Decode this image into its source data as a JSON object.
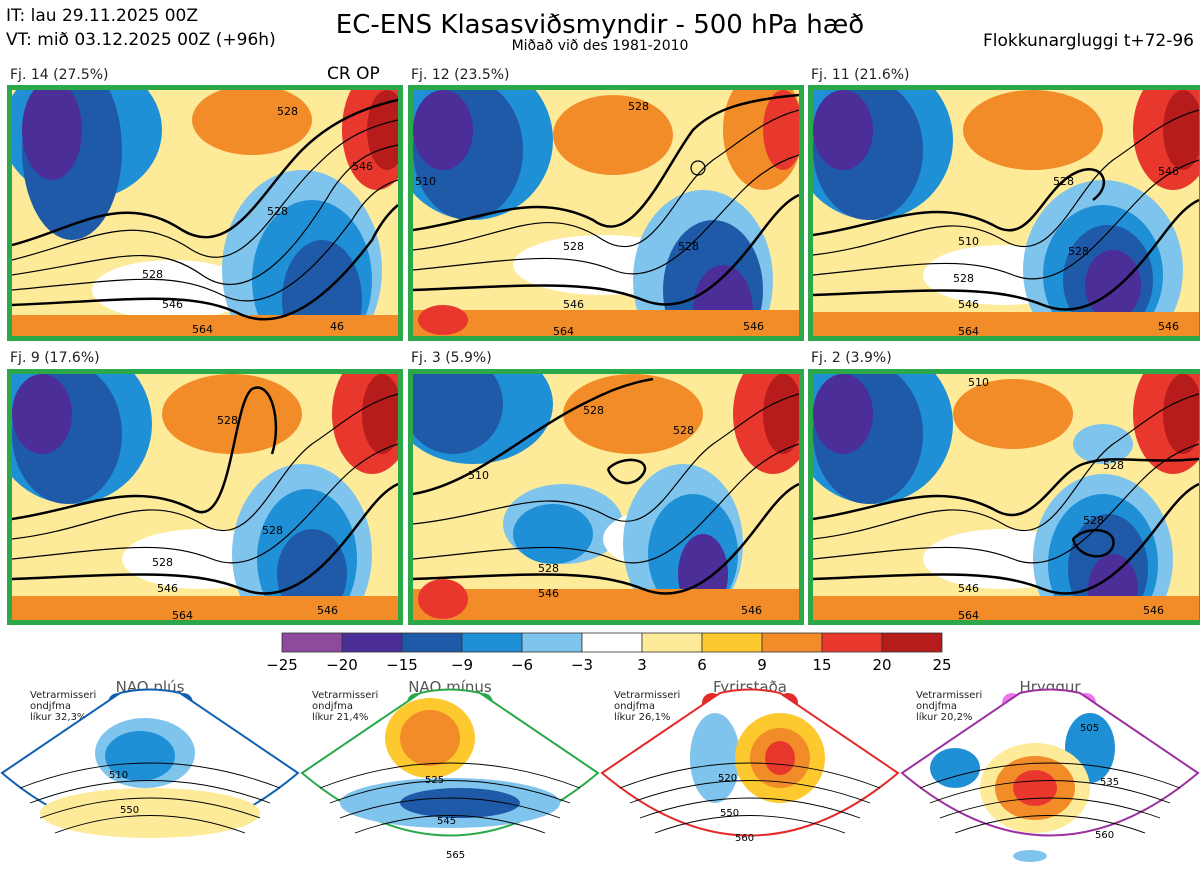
{
  "header": {
    "it": "IT: lau 29.11.2025 00Z",
    "vt": "VT: mið 03.12.2025 00Z  (+96h)",
    "title": "EC-ENS Klasasviðsmyndir - 500 hPa hæð",
    "subtitle": "Miðað við des 1981-2010",
    "window": "Flokkunargluggi t+72-96"
  },
  "panels": [
    {
      "label": "Fj. 14 (27.5%)",
      "tag": "CR OP",
      "contours": [
        "528",
        "528",
        "546",
        "528",
        "546",
        "564",
        "46"
      ]
    },
    {
      "label": "Fj. 12 (23.5%)",
      "contours": [
        "528",
        "528",
        "528",
        "546",
        "564",
        "546",
        "510"
      ]
    },
    {
      "label": "Fj. 11 (21.6%)",
      "contours": [
        "528",
        "528",
        "546",
        "510",
        "528",
        "546",
        "564",
        "546"
      ]
    },
    {
      "label": "Fj. 9 (17.6%)",
      "contours": [
        "528",
        "528",
        "528",
        "546",
        "564",
        "546"
      ]
    },
    {
      "label": "Fj. 3 (5.9%)",
      "contours": [
        "528",
        "510",
        "528",
        "546",
        "528",
        "546"
      ]
    },
    {
      "label": "Fj. 2 (3.9%)",
      "contours": [
        "510",
        "528",
        "528",
        "546",
        "564",
        "546"
      ]
    }
  ],
  "colorbar": {
    "colors": [
      "#8e4a9c",
      "#4b2e98",
      "#1f5aa8",
      "#1f8fd6",
      "#7fc4ec",
      "#ffffff",
      "#fdeb9a",
      "#fdc92e",
      "#f28c28",
      "#e8382e",
      "#b71c1c"
    ],
    "ticks": [
      "−25",
      "−20",
      "−15",
      "−9",
      "−6",
      "−3",
      "3",
      "6",
      "9",
      "15",
      "20",
      "25"
    ]
  },
  "regimes": [
    {
      "title": "NAO plús",
      "season": "Vetrarmisseri",
      "type": "ondjfma",
      "likur": "líkur 32,3%",
      "color": "#1060b0",
      "contours": [
        "510",
        "550"
      ]
    },
    {
      "title": "NAO mínus",
      "season": "Vetrarmisseri",
      "type": "ondjfma",
      "likur": "líkur 21,4%",
      "color": "#2aa84a",
      "contours": [
        "525",
        "545",
        "565"
      ]
    },
    {
      "title": "Fyrirstaða",
      "season": "Vetrarmisseri",
      "type": "ondjfma",
      "likur": "líkur 26,1%",
      "color": "#e32a2a",
      "contours": [
        "520",
        "550",
        "560"
      ]
    },
    {
      "title": "Hryggur",
      "season": "Vetrarmisseri",
      "type": "ondjfma",
      "likur": "líkur 20,2%",
      "color": "#9b30a0",
      "contours": [
        "505",
        "535",
        "560"
      ]
    }
  ]
}
